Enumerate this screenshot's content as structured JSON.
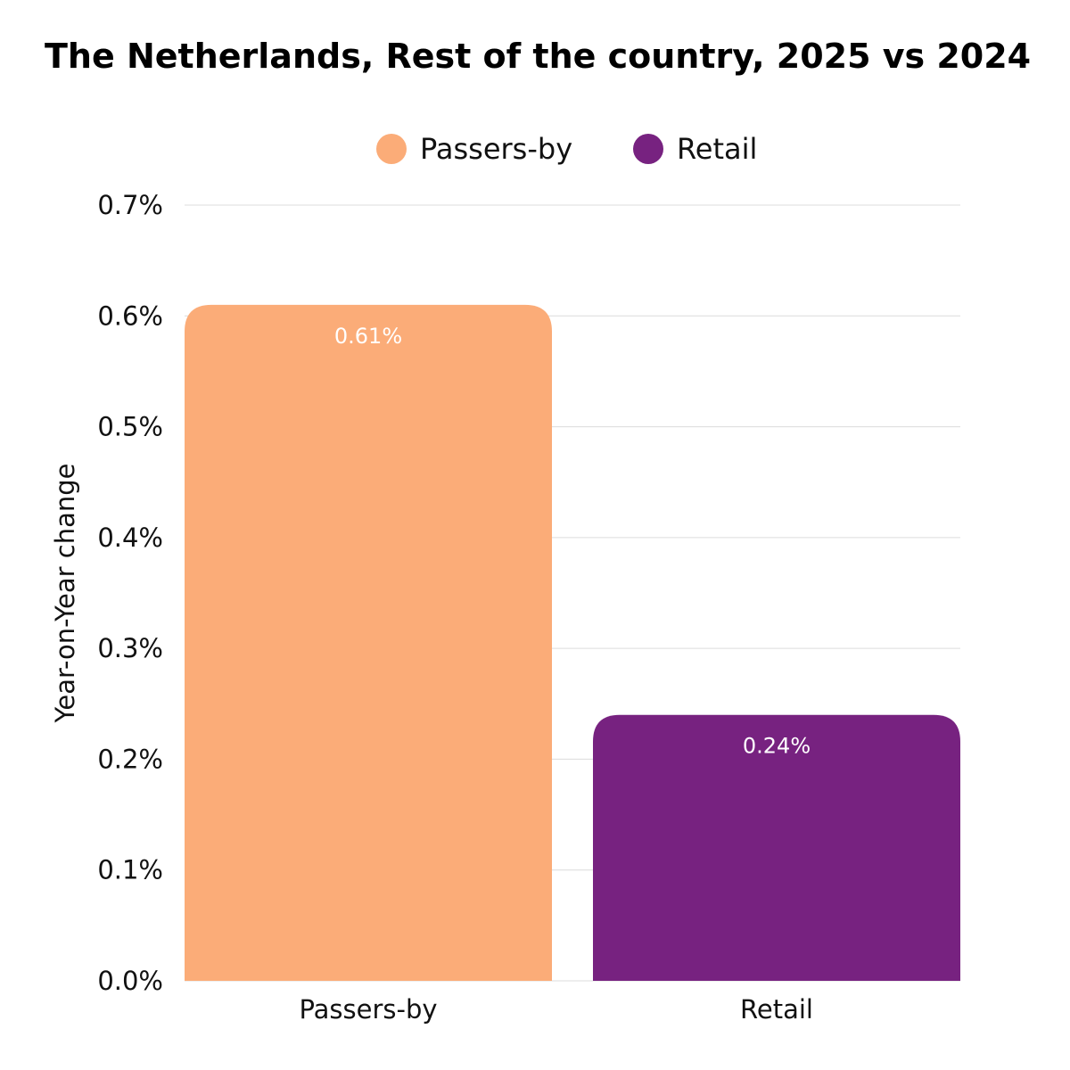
{
  "chart_data": {
    "type": "bar",
    "title": "The Netherlands, Rest of the country, 2025 vs 2024",
    "categories": [
      "Passers-by",
      "Retail"
    ],
    "values": [
      0.61,
      0.24
    ],
    "data_labels": [
      "0.61%",
      "0.24%"
    ],
    "colors": [
      "#FBAC78",
      "#772280"
    ],
    "legend": [
      {
        "label": "Passers-by",
        "color": "#FBAC78"
      },
      {
        "label": "Retail",
        "color": "#772280"
      }
    ],
    "legend_position": "top-center",
    "xlabel": "",
    "ylabel": "Year-on-Year change",
    "ylim": [
      0,
      0.7
    ],
    "yticks": [
      0.0,
      0.1,
      0.2,
      0.3,
      0.4,
      0.5,
      0.6,
      0.7
    ],
    "ytick_labels": [
      "0.0%",
      "0.1%",
      "0.2%",
      "0.3%",
      "0.4%",
      "0.5%",
      "0.6%",
      "0.7%"
    ],
    "grid": true
  }
}
